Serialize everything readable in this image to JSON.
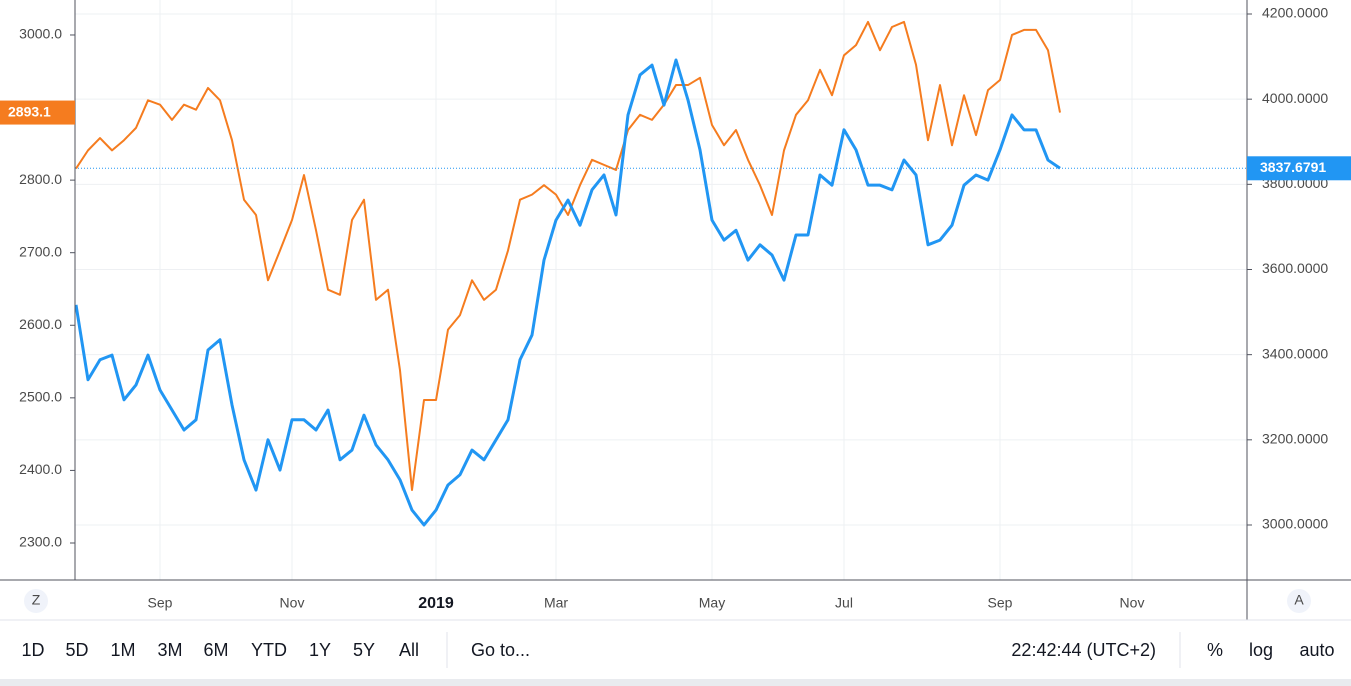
{
  "chart_data": {
    "type": "line",
    "categories": [
      null,
      null,
      null,
      null,
      null,
      null,
      null,
      "Sep",
      null,
      null,
      null,
      null,
      null,
      null,
      null,
      null,
      null,
      null,
      "Nov",
      null,
      null,
      null,
      null,
      null,
      null,
      null,
      null,
      null,
      null,
      null,
      "2019",
      null,
      null,
      null,
      null,
      null,
      null,
      null,
      null,
      null,
      "Mar",
      null,
      null,
      null,
      null,
      null,
      null,
      null,
      null,
      null,
      null,
      null,
      null,
      "May",
      null,
      null,
      null,
      null,
      null,
      null,
      null,
      null,
      null,
      null,
      "Jul",
      null,
      null,
      null,
      null,
      null,
      null,
      null,
      null,
      null,
      null,
      null,
      null,
      "Sep",
      null,
      null,
      null,
      null,
      null,
      null,
      null,
      null,
      null,
      null,
      "Nov"
    ],
    "series": [
      {
        "color": "#f57c1f",
        "axis": "y",
        "values": [
          2816,
          2841,
          2858,
          2841,
          2855,
          2872,
          2910,
          2904,
          2883,
          2904,
          2897,
          2927,
          2910,
          2855,
          2773,
          2752,
          2662,
          2703,
          2745,
          2807,
          2731,
          2649,
          2642,
          2745,
          2773,
          2635,
          2649,
          2538,
          2373,
          2497,
          2497,
          2594,
          2614,
          2662,
          2635,
          2649,
          2703,
          2773,
          2780,
          2793,
          2780,
          2752,
          2793,
          2828,
          2821,
          2814,
          2869,
          2890,
          2883,
          2904,
          2931,
          2931,
          2941,
          2876,
          2848,
          2869,
          2828,
          2793,
          2752,
          2841,
          2890,
          2910,
          2952,
          2917,
          2972,
          2986,
          3018,
          2979,
          3011,
          3018,
          2959,
          2855,
          2931,
          2848,
          2917,
          2862,
          2924,
          2938,
          3000,
          3007,
          3007,
          2979,
          2893.1,
          null,
          null,
          null,
          null,
          null,
          null
        ]
      },
      {
        "color": "#2196f3",
        "axis": "y2",
        "values": [
          3517,
          3341,
          3388,
          3399,
          3294,
          3329,
          3399,
          3317,
          3270,
          3223,
          3247,
          3411,
          3435,
          3282,
          3153,
          3082,
          3200,
          3129,
          3247,
          3247,
          3223,
          3270,
          3153,
          3176,
          3258,
          3188,
          3153,
          3106,
          3035,
          3000,
          3035,
          3094,
          3118,
          3176,
          3153,
          3200,
          3247,
          3388,
          3446,
          3622,
          3716,
          3763,
          3704,
          3787,
          3822,
          3728,
          3963,
          4057,
          4080,
          3986,
          4092,
          3998,
          3881,
          3716,
          3669,
          3692,
          3622,
          3658,
          3634,
          3575,
          3681,
          3681,
          3822,
          3798,
          3928,
          3881,
          3798,
          3798,
          3787,
          3857,
          3822,
          3658,
          3669,
          3704,
          3798,
          3822,
          3810,
          3881,
          3963,
          3928,
          3928,
          3857,
          3837.6791,
          null,
          null,
          null,
          null,
          null,
          null
        ]
      }
    ],
    "ylim": [
      2249,
      3048.2
    ],
    "yticks": [
      {
        "value": 2300,
        "label": "2300.0"
      },
      {
        "value": 2400,
        "label": "2400.0"
      },
      {
        "value": 2500,
        "label": "2500.0"
      },
      {
        "value": 2600,
        "label": "2600.0"
      },
      {
        "value": 2700,
        "label": "2700.0"
      },
      {
        "value": 2800,
        "label": "2800.0"
      },
      {
        "value": 3000,
        "label": "3000.0"
      }
    ],
    "y2lim": [
      2870.8,
      4232.9
    ],
    "y2ticks": [
      {
        "value": 3000,
        "label": "3000.0000"
      },
      {
        "value": 3200,
        "label": "3200.0000"
      },
      {
        "value": 3400,
        "label": "3400.0000"
      },
      {
        "value": 3600,
        "label": "3600.0000"
      },
      {
        "value": 3800,
        "label": "3800.0000"
      },
      {
        "value": 4000,
        "label": "4000.0000"
      },
      {
        "value": 4200,
        "label": "4200.0000"
      }
    ],
    "grid": true
  },
  "axis_buttons": [
    "Z",
    "A"
  ],
  "toolbar": {
    "ranges": [
      "1D",
      "5D",
      "1M",
      "3M",
      "6M",
      "YTD",
      "1Y",
      "5Y",
      "All"
    ],
    "goto": "Go to...",
    "time": "22:42:44 (UTC+2)",
    "options": [
      "%",
      "log",
      "auto"
    ]
  }
}
